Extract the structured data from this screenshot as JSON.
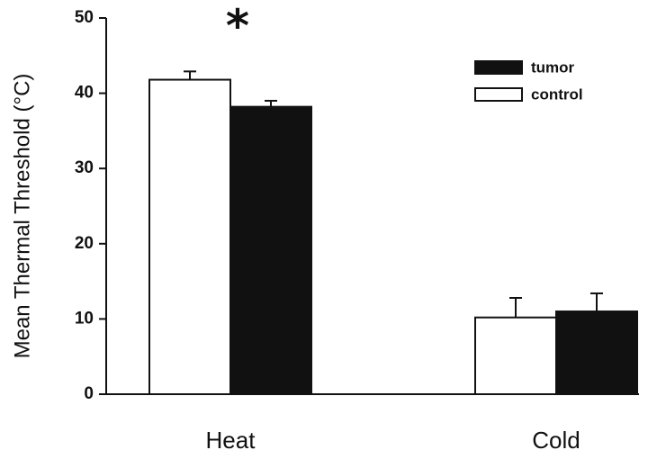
{
  "chart_data": {
    "type": "bar",
    "categories": [
      "Heat",
      "Cold"
    ],
    "series": [
      {
        "name": "control",
        "values": [
          41.8,
          10.2
        ],
        "errors": [
          1.1,
          2.6
        ],
        "color": "#ffffff"
      },
      {
        "name": "tumor",
        "values": [
          38.2,
          11.0
        ],
        "errors": [
          0.8,
          2.4
        ],
        "color": "#111111"
      }
    ],
    "ylabel": "Mean Thermal Threshold (°C)",
    "xlabel": "",
    "ylim": [
      0,
      50
    ],
    "yticks": [
      "0",
      "10",
      "20",
      "30",
      "40",
      "50"
    ],
    "legend_order": [
      "tumor",
      "control"
    ],
    "legend_position": "top-right",
    "annotation": "*",
    "grid": false
  }
}
